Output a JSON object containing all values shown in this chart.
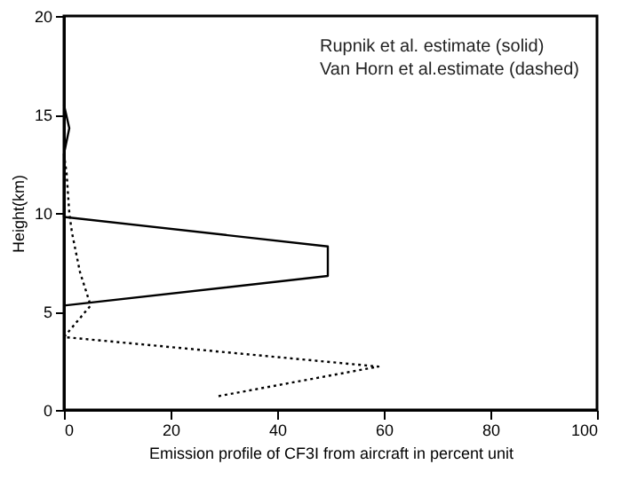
{
  "chart_data": {
    "type": "line",
    "xlabel": "Emission profile of CF3I from aircraft in percent unit",
    "ylabel": "Height(km)",
    "annotations": [
      "Rupnik et al. estimate (solid)",
      "Van Horn et al.estimate (dashed)"
    ],
    "xlim": [
      0,
      100
    ],
    "xticks": [
      0,
      20,
      40,
      60,
      80,
      100
    ],
    "ylim": [
      0,
      20
    ],
    "yticks": [
      0,
      5,
      10,
      15,
      20
    ],
    "grid": false,
    "series": [
      {
        "color": "#000000",
        "line_style": "solid",
        "x": [
          0,
          49.5,
          49.5,
          0,
          0,
          1,
          0
        ],
        "values": [
          5.3,
          6.8,
          8.3,
          9.8,
          13,
          14.3,
          15.5
        ]
      },
      {
        "color": "#000000",
        "line_style": "dotted",
        "x": [
          29,
          59,
          0,
          5,
          3,
          1.5,
          1,
          0.5,
          0
        ],
        "values": [
          0.7,
          2.2,
          3.7,
          5.3,
          7,
          9,
          10,
          12,
          13
        ]
      }
    ]
  }
}
